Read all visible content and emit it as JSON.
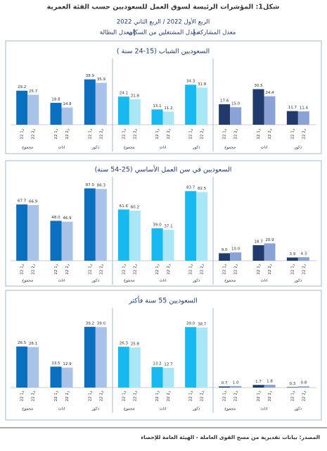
{
  "header": {
    "title": "شكل1: المؤشرات الرئيسة لسوق العمل للسعوديين حسب الفئة العمرية",
    "subtitle": "الربع الأول 2022 / الربع الثاني 2022",
    "legend": [
      "معدل المشاركة",
      "معدل المشتغلين من السكان",
      "معدل البطالة"
    ]
  },
  "chart_data": [
    {
      "type": "bar",
      "title": "السعوديين الشباب (15-24 سنة )",
      "ylim": [
        0,
        55
      ],
      "groups": [
        {
          "categories": [
            "مجموع",
            "اناث",
            "ذكور"
          ],
          "series": [
            {
              "name": "ر1 22",
              "color": "#0b6fc0",
              "values": [
                29.2,
                18.8,
                38.9
              ],
              "value_labels": [
                "29.2",
                "18.8",
                "38.9"
              ]
            },
            {
              "name": "ر2 22",
              "color": "#a9c3e8",
              "values": [
                25.7,
                14.8,
                35.9
              ],
              "value_labels": [
                "25.7",
                "14.8",
                "35.9"
              ]
            }
          ]
        },
        {
          "categories": [
            "مجموع",
            "اناث",
            "ذكور"
          ],
          "series": [
            {
              "name": "ر1 22",
              "color": "#16b9f0",
              "values": [
                24.1,
                13.1,
                34.3
              ],
              "value_labels": [
                "24.1",
                "13.1",
                "34.3"
              ]
            },
            {
              "name": "ر2 22",
              "color": "#a9e7f8",
              "values": [
                21.8,
                11.2,
                31.8
              ],
              "value_labels": [
                "21.8",
                "11.2",
                "31.8"
              ]
            }
          ]
        },
        {
          "categories": [
            "مجموع",
            "اناث",
            "ذكور"
          ],
          "series": [
            {
              "name": "ر1 22",
              "color": "#1f3a6b",
              "values": [
                17.6,
                30.5,
                11.7
              ],
              "value_labels": [
                "17.6",
                "30.5",
                "11.7"
              ]
            },
            {
              "name": "ر2 22",
              "color": "#8aa2d6",
              "values": [
                15.0,
                24.4,
                11.4
              ],
              "value_labels": [
                "15.0",
                "24.4",
                "11.4"
              ]
            }
          ]
        }
      ]
    },
    {
      "type": "bar",
      "title": "السعوديين في سن العمل الأساسي (25-54 سنة)",
      "ylim": [
        0,
        100
      ],
      "groups": [
        {
          "categories": [
            "مجموع",
            "اناث",
            "ذكور"
          ],
          "series": [
            {
              "name": "ر1 22",
              "color": "#0b6fc0",
              "values": [
                67.7,
                48.0,
                87.0
              ],
              "value_labels": [
                "67.7",
                "48.0",
                "87.0"
              ]
            },
            {
              "name": "ر2 22",
              "color": "#a9c3e8",
              "values": [
                66.9,
                46.9,
                86.3
              ],
              "value_labels": [
                "66.9",
                "46.9",
                "86.3"
              ]
            }
          ]
        },
        {
          "categories": [
            "مجموع",
            "اناث",
            "ذكور"
          ],
          "series": [
            {
              "name": "ر1 22",
              "color": "#16b9f0",
              "values": [
                61.6,
                39.0,
                83.7
              ],
              "value_labels": [
                "61.6",
                "39.0",
                "83.7"
              ]
            },
            {
              "name": "ر2 22",
              "color": "#a9e7f8",
              "values": [
                60.2,
                37.1,
                82.5
              ],
              "value_labels": [
                "60.2",
                "37.1",
                "82.5"
              ]
            }
          ]
        },
        {
          "categories": [
            "مجموع",
            "اناث",
            "ذكور"
          ],
          "series": [
            {
              "name": "ر1 22",
              "color": "#1f3a6b",
              "values": [
                9.0,
                18.7,
                3.9
              ],
              "value_labels": [
                "9.0",
                "18.7",
                "3.9"
              ]
            },
            {
              "name": "ر2 22",
              "color": "#8aa2d6",
              "values": [
                10.0,
                20.9,
                4.3
              ],
              "value_labels": [
                "10.0",
                "20.9",
                "4.3"
              ]
            }
          ]
        }
      ]
    },
    {
      "type": "bar",
      "title": "السعوديين 55 سنة فأكثر",
      "ylim": [
        0,
        50
      ],
      "groups": [
        {
          "categories": [
            "مجموع",
            "اناث",
            "ذكور"
          ],
          "series": [
            {
              "name": "ر1 22",
              "color": "#0b6fc0",
              "values": [
                26.5,
                13.5,
                39.2
              ],
              "value_labels": [
                "26.5",
                "13.5",
                "39.2"
              ]
            },
            {
              "name": "ر2 22",
              "color": "#a9c3e8",
              "values": [
                26.1,
                12.9,
                39.0
              ],
              "value_labels": [
                "26.1",
                "12.9",
                "39.0"
              ]
            }
          ]
        },
        {
          "categories": [
            "مجموع",
            "اناث",
            "ذكور"
          ],
          "series": [
            {
              "name": "ر1 22",
              "color": "#16b9f0",
              "values": [
                26.3,
                13.2,
                39.0
              ],
              "value_labels": [
                "26.3",
                "13.2",
                "39.0"
              ]
            },
            {
              "name": "ر2 22",
              "color": "#a9e7f8",
              "values": [
                25.8,
                12.7,
                38.7
              ],
              "value_labels": [
                "25.8",
                "12.7",
                "38.7"
              ]
            }
          ]
        },
        {
          "categories": [
            "مجموع",
            "اناث",
            "ذكور"
          ],
          "series": [
            {
              "name": "ر1 22",
              "color": "#1f3a6b",
              "values": [
                0.7,
                1.7,
                0.3
              ],
              "value_labels": [
                "0.7",
                "1.7",
                "0.3"
              ]
            },
            {
              "name": "ر2 22",
              "color": "#8aa2d6",
              "values": [
                1.0,
                1.8,
                0.8
              ],
              "value_labels": [
                "1.0",
                "1.8",
                "0.8"
              ]
            }
          ]
        }
      ]
    }
  ],
  "footer": {
    "source": "المصدر: بيانات تقديرية من مسح القوى العاملة - الهيئة العامة للإحصاء"
  }
}
